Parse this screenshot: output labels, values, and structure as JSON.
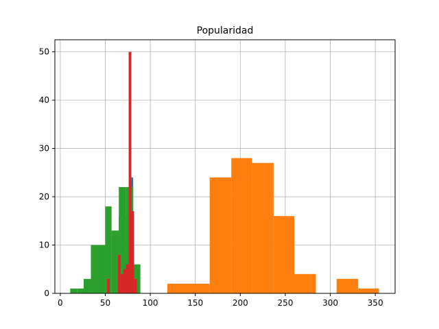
{
  "chart_data": {
    "type": "bar",
    "title": "Popularidad",
    "xlabel": "",
    "ylabel": "",
    "xlim": [
      -6,
      372
    ],
    "ylim": [
      0,
      52.5
    ],
    "xticks": [
      0,
      50,
      100,
      150,
      200,
      250,
      300,
      350
    ],
    "yticks": [
      0,
      10,
      20,
      30,
      40,
      50
    ],
    "grid": true,
    "colors": [
      "#1f77b4",
      "#ff7f0e",
      "#2ca02c",
      "#d62728"
    ],
    "series": [
      {
        "color": "#1f77b4",
        "bins": [
          {
            "x0": 61,
            "x1": 65,
            "value": 0
          },
          {
            "x0": 65,
            "x1": 69,
            "value": 16
          },
          {
            "x0": 69,
            "x1": 73,
            "value": 8
          },
          {
            "x0": 73,
            "x1": 77,
            "value": 16
          },
          {
            "x0": 77,
            "x1": 81,
            "value": 24
          }
        ]
      },
      {
        "color": "#ff7f0e",
        "bins": [
          {
            "x0": 119,
            "x1": 143,
            "value": 2
          },
          {
            "x0": 143,
            "x1": 166,
            "value": 2
          },
          {
            "x0": 166,
            "x1": 190,
            "value": 24
          },
          {
            "x0": 190,
            "x1": 213,
            "value": 28
          },
          {
            "x0": 213,
            "x1": 237,
            "value": 27
          },
          {
            "x0": 237,
            "x1": 260,
            "value": 16
          },
          {
            "x0": 260,
            "x1": 284,
            "value": 4
          },
          {
            "x0": 284,
            "x1": 307,
            "value": 0
          },
          {
            "x0": 307,
            "x1": 331,
            "value": 3
          },
          {
            "x0": 331,
            "x1": 354,
            "value": 1
          }
        ]
      },
      {
        "color": "#2ca02c",
        "bins": [
          {
            "x0": 11,
            "x1": 19,
            "value": 1
          },
          {
            "x0": 19,
            "x1": 26,
            "value": 1
          },
          {
            "x0": 26,
            "x1": 34,
            "value": 3
          },
          {
            "x0": 34,
            "x1": 42,
            "value": 10
          },
          {
            "x0": 42,
            "x1": 50,
            "value": 10
          },
          {
            "x0": 50,
            "x1": 57,
            "value": 18
          },
          {
            "x0": 57,
            "x1": 65,
            "value": 13
          },
          {
            "x0": 65,
            "x1": 73,
            "value": 22
          },
          {
            "x0": 73,
            "x1": 81,
            "value": 22
          },
          {
            "x0": 81,
            "x1": 89,
            "value": 6
          }
        ]
      },
      {
        "color": "#d62728",
        "bins": [
          {
            "x0": 52,
            "x1": 55,
            "value": 3
          },
          {
            "x0": 55,
            "x1": 58,
            "value": 0
          },
          {
            "x0": 58,
            "x1": 61,
            "value": 0
          },
          {
            "x0": 61,
            "x1": 64,
            "value": 0
          },
          {
            "x0": 64,
            "x1": 67,
            "value": 8
          },
          {
            "x0": 67,
            "x1": 70,
            "value": 4
          },
          {
            "x0": 70,
            "x1": 73,
            "value": 5
          },
          {
            "x0": 73,
            "x1": 76,
            "value": 6
          },
          {
            "x0": 76,
            "x1": 79,
            "value": 50
          },
          {
            "x0": 79,
            "x1": 82,
            "value": 17
          },
          {
            "x0": 82,
            "x1": 85,
            "value": 3
          }
        ]
      }
    ]
  }
}
